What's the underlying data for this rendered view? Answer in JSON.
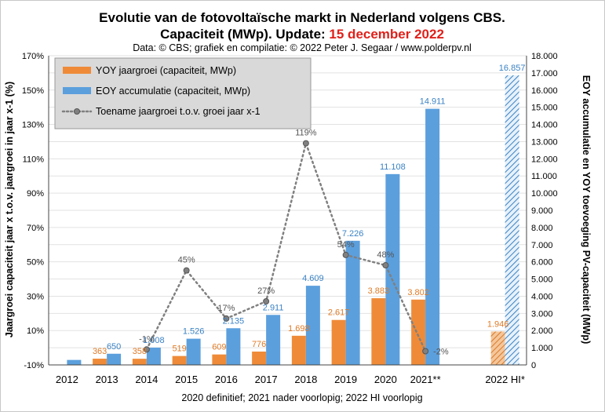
{
  "title_line1": "Evolutie van de fotovoltaïsche markt in Nederland volgens CBS.",
  "title_line2_prefix": "Capaciteit (MWp). Update: ",
  "title_line2_date": "15 december 2022",
  "subtitle": "Data: © CBS; grafiek en compilatie: © 2022 Peter J. Segaar / www.polderpv.nl",
  "footnote": "2020 definitief; 2021 nader voorlopig; 2022 HI voorlopig",
  "colors": {
    "orange": "#ef8b38",
    "blue": "#5b9fdd",
    "gray": "#808080",
    "date_red": "#e0201a"
  },
  "chart_data": {
    "type": "bar",
    "categories": [
      "2012",
      "2013",
      "2014",
      "2015",
      "2016",
      "2017",
      "2018",
      "2019",
      "2020",
      "2021**",
      "2022 HI*"
    ],
    "series": [
      {
        "name": "YOY jaargroei (capaciteit, MWp)",
        "axis": "right",
        "values": [
          null,
          363,
          358,
          519,
          609,
          776,
          1698,
          2617,
          3883,
          3802,
          1946
        ],
        "labels": [
          "",
          "363",
          "358",
          "519",
          "609",
          "776",
          "1.698",
          "2.617",
          "3.883",
          "3.802",
          "1.946"
        ]
      },
      {
        "name": "EOY accumulatie (capaciteit, MWp)",
        "axis": "right",
        "values": [
          290,
          650,
          1008,
          1526,
          2135,
          2911,
          4609,
          7226,
          11108,
          14911,
          16857
        ],
        "labels": [
          "",
          "650",
          "1.008",
          "1.526",
          "2.135",
          "2.911",
          "4.609",
          "7.226",
          "11.108",
          "14.911",
          "16.857"
        ]
      },
      {
        "name": "Toename jaargroei t.o.v. groei jaar x-1",
        "axis": "left",
        "type": "line",
        "values": [
          null,
          null,
          -1,
          45,
          17,
          27,
          119,
          54,
          48,
          -2,
          null
        ],
        "labels": [
          "",
          "",
          "-1%",
          "45%",
          "17%",
          "27%",
          "119%",
          "54%",
          "48%",
          "-2%",
          ""
        ]
      }
    ],
    "left_axis": {
      "label": "Jaargroei capaciteit jaar x t.o.v. jaargroei in jaar x-1 (%)",
      "range": [
        -10,
        170
      ],
      "ticks": [
        "-10%",
        "10%",
        "30%",
        "50%",
        "70%",
        "90%",
        "110%",
        "130%",
        "150%",
        "170%"
      ]
    },
    "right_axis": {
      "label": "EOY accumulatie en YOY toevoeging PV-capaciteit (MWp)",
      "range": [
        0,
        18000
      ],
      "ticks": [
        "0",
        "1.000",
        "2.000",
        "3.000",
        "4.000",
        "5.000",
        "6.000",
        "7.000",
        "8.000",
        "9.000",
        "10.000",
        "11.000",
        "12.000",
        "13.000",
        "14.000",
        "15.000",
        "16.000",
        "17.000",
        "18.000"
      ]
    },
    "legend_position": "top-left",
    "grid": true
  }
}
